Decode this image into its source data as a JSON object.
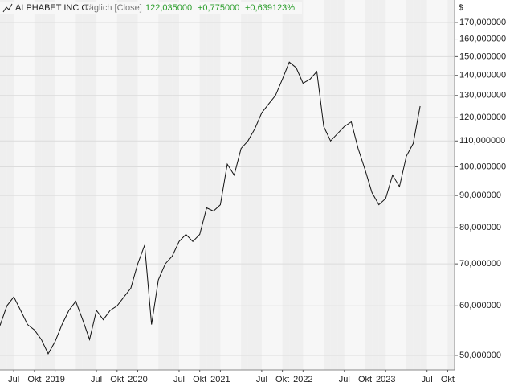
{
  "chart_data": {
    "type": "line",
    "title": "ALPHABET INC C",
    "subtitle": "Täglich [Close]",
    "header_values": [
      "122,035000",
      "+0,775000",
      "+0,639123%"
    ],
    "y_axis_label": "$",
    "log_scale": true,
    "grid": true,
    "x": [
      "2018-05",
      "2018-06",
      "2018-07",
      "2018-08",
      "2018-09",
      "2018-10",
      "2018-11",
      "2018-12",
      "2019-01",
      "2019-02",
      "2019-03",
      "2019-04",
      "2019-05",
      "2019-06",
      "2019-07",
      "2019-08",
      "2019-09",
      "2019-10",
      "2019-11",
      "2019-12",
      "2020-01",
      "2020-02",
      "2020-03",
      "2020-04",
      "2020-05",
      "2020-06",
      "2020-07",
      "2020-08",
      "2020-09",
      "2020-10",
      "2020-11",
      "2020-12",
      "2021-01",
      "2021-02",
      "2021-03",
      "2021-04",
      "2021-05",
      "2021-06",
      "2021-07",
      "2021-08",
      "2021-09",
      "2021-10",
      "2021-11",
      "2021-12",
      "2022-01",
      "2022-02",
      "2022-03",
      "2022-04",
      "2022-05",
      "2022-06",
      "2022-07",
      "2022-08",
      "2022-09",
      "2022-10",
      "2022-11",
      "2022-12",
      "2023-01",
      "2023-02",
      "2023-03",
      "2023-04",
      "2023-05",
      "2023-06"
    ],
    "series": [
      {
        "name": "ALPHABET INC C",
        "color": "#111111",
        "values": [
          55.8,
          60,
          62,
          59,
          56,
          54.9,
          53,
          50.3,
          52.6,
          56,
          59,
          61,
          57,
          53,
          59,
          57,
          59,
          60,
          62,
          64,
          70,
          75,
          56,
          66,
          70,
          72,
          76,
          78,
          76,
          78,
          86,
          85,
          87,
          101,
          97,
          107,
          110,
          115,
          122,
          126,
          130,
          138,
          147,
          144,
          136,
          138,
          142,
          116,
          110,
          113,
          116,
          118,
          107,
          99,
          91,
          87,
          89,
          97,
          93,
          104,
          109,
          125
        ]
      }
    ],
    "xlim": [
      "2018-05",
      "2023-11"
    ],
    "xticks": [
      {
        "value": "2018-07",
        "label": "Jul"
      },
      {
        "value": "2018-10",
        "label": "Okt"
      },
      {
        "value": "2019-01",
        "label": "2019"
      },
      {
        "value": "2019-07",
        "label": "Jul"
      },
      {
        "value": "2019-10",
        "label": "Okt"
      },
      {
        "value": "2020-01",
        "label": "2020"
      },
      {
        "value": "2020-07",
        "label": "Jul"
      },
      {
        "value": "2020-10",
        "label": "Okt"
      },
      {
        "value": "2021-01",
        "label": "2021"
      },
      {
        "value": "2021-07",
        "label": "Jul"
      },
      {
        "value": "2021-10",
        "label": "Okt"
      },
      {
        "value": "2022-01",
        "label": "2022"
      },
      {
        "value": "2022-07",
        "label": "Jul"
      },
      {
        "value": "2022-10",
        "label": "Okt"
      },
      {
        "value": "2023-01",
        "label": "2023"
      },
      {
        "value": "2023-07",
        "label": "Jul"
      },
      {
        "value": "2023-10",
        "label": "Okt"
      }
    ],
    "ylim": [
      47.4,
      184.7
    ],
    "yticks": [
      {
        "value": 50,
        "label": "50,000000"
      },
      {
        "value": 60,
        "label": "60,000000"
      },
      {
        "value": 70,
        "label": "70,000000"
      },
      {
        "value": 80,
        "label": "80,000000"
      },
      {
        "value": 90,
        "label": "90,000000"
      },
      {
        "value": 100,
        "label": "100,000000"
      },
      {
        "value": 110,
        "label": "110,000000"
      },
      {
        "value": 120,
        "label": "120,000000"
      },
      {
        "value": 130,
        "label": "130,000000"
      },
      {
        "value": 140,
        "label": "140,000000"
      },
      {
        "value": 150,
        "label": "150,000000"
      },
      {
        "value": 160,
        "label": "160,000000"
      },
      {
        "value": 170,
        "label": "170,000000"
      }
    ]
  }
}
